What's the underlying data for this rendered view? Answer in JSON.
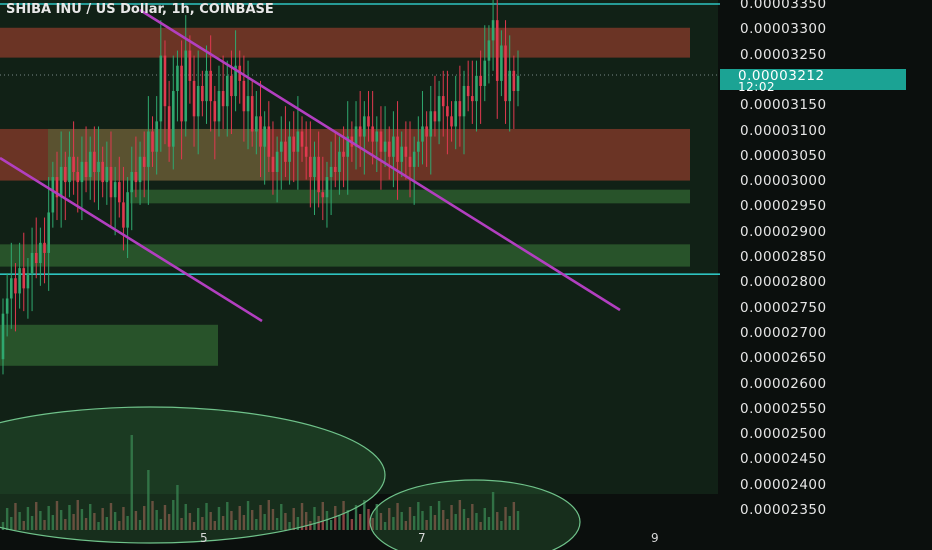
{
  "header": {
    "title": "SHIBA INU / US Dollar, 1h, COINBASE"
  },
  "price_axis": {
    "labels": [
      "0.00003350",
      "0.00003300",
      "0.00003250",
      "0.00003150",
      "0.00003100",
      "0.00003050",
      "0.00003000",
      "0.00002950",
      "0.00002900",
      "0.00002850",
      "0.00002800",
      "0.00002750",
      "0.00002700",
      "0.00002650",
      "0.00002600",
      "0.00002550",
      "0.00002500",
      "0.00002450",
      "0.00002400",
      "0.00002350"
    ],
    "current_price": "0.00003212",
    "countdown": "12:02"
  },
  "time_axis": {
    "labels": [
      "5",
      "7",
      "9"
    ]
  },
  "colors": {
    "background": "#0b0f0d",
    "plot_background": "#112116",
    "up_candle": "#2fa86f",
    "down_candle": "#e0394f",
    "trendline": "#b23fc0",
    "horizontal_line": "#2ec4c0",
    "supply_zone": "#8a3b2b",
    "demand_zone": "#2d5c2e",
    "accent": "#1ba394"
  },
  "chart_data": {
    "type": "candlestick",
    "title": "SHIBA INU / US Dollar, 1h, COINBASE",
    "ylim": [
      2.33e-05,
      3.36e-05
    ],
    "current_price": 3.212e-05,
    "horizontal_lines": [
      3.35e-05,
      2.818e-05
    ],
    "zones": [
      {
        "kind": "supply",
        "low": 3.246e-05,
        "high": 3.305e-05
      },
      {
        "kind": "supply",
        "low": 3.003e-05,
        "high": 3.105e-05
      },
      {
        "kind": "demand",
        "low": 2.958e-05,
        "high": 2.985e-05
      },
      {
        "kind": "demand",
        "low": 2.833e-05,
        "high": 2.877e-05
      },
      {
        "kind": "demand",
        "low": 2.637e-05,
        "high": 2.718e-05
      }
    ],
    "candles": {
      "open": [
        2.65e-05,
        2.74e-05,
        2.77e-05,
        2.81e-05,
        2.78e-05,
        2.83e-05,
        2.79e-05,
        2.82e-05,
        2.86e-05,
        2.84e-05,
        2.88e-05,
        2.86e-05,
        2.94e-05,
        3.01e-05,
        2.97e-05,
        3.03e-05,
        3e-05,
        3.05e-05,
        3.02e-05,
        3e-05,
        3.04e-05,
        3.01e-05,
        3.06e-05,
        3.02e-05,
        3.04e-05,
        3e-05,
        3.03e-05,
        2.97e-05,
        3e-05,
        2.96e-05,
        2.91e-05,
        2.98e-05,
        3.02e-05,
        3e-05,
        3.05e-05,
        3.03e-05,
        3.1e-05,
        3.06e-05,
        3.12e-05,
        3.25e-05,
        3.15e-05,
        3.07e-05,
        3.18e-05,
        3.23e-05,
        3.12e-05,
        3.26e-05,
        3.2e-05,
        3.13e-05,
        3.19e-05,
        3.16e-05,
        3.22e-05,
        3.16e-05,
        3.12e-05,
        3.18e-05,
        3.15e-05,
        3.21e-05,
        3.17e-05,
        3.23e-05,
        3.2e-05,
        3.14e-05,
        3.17e-05,
        3.1e-05,
        3.13e-05,
        3.07e-05,
        3.11e-05,
        3.05e-05,
        3.02e-05,
        3.06e-05,
        3.08e-05,
        3.04e-05,
        3.09e-05,
        3.06e-05,
        3.1e-05,
        3.07e-05,
        3.05e-05,
        3.01e-05,
        3.05e-05,
        2.98e-05,
        2.97e-05,
        3.01e-05,
        3.03e-05,
        3.02e-05,
        3.06e-05,
        3.05e-05,
        3.09e-05,
        3.07e-05,
        3.11e-05,
        3.09e-05,
        3.13e-05,
        3.11e-05,
        3.08e-05,
        3.1e-05,
        3.06e-05,
        3.08e-05,
        3.05e-05,
        3.09e-05,
        3.04e-05,
        3.07e-05,
        3.05e-05,
        3.03e-05,
        3.06e-05,
        3.08e-05,
        3.11e-05,
        3.09e-05,
        3.14e-05,
        3.12e-05,
        3.17e-05,
        3.15e-05,
        3.13e-05,
        3.11e-05,
        3.16e-05,
        3.13e-05,
        3.19e-05,
        3.17e-05,
        3.16e-05,
        3.21e-05,
        3.19e-05,
        3.24e-05,
        3.28e-05,
        3.32e-05,
        3.2e-05,
        3.27e-05,
        3.16e-05,
        3.22e-05,
        3.18e-05
      ],
      "close": [
        2.74e-05,
        2.77e-05,
        2.81e-05,
        2.78e-05,
        2.83e-05,
        2.79e-05,
        2.82e-05,
        2.86e-05,
        2.84e-05,
        2.88e-05,
        2.86e-05,
        2.94e-05,
        3.01e-05,
        2.97e-05,
        3.03e-05,
        3e-05,
        3.05e-05,
        3.02e-05,
        3e-05,
        3.04e-05,
        3.01e-05,
        3.06e-05,
        3.02e-05,
        3.04e-05,
        3e-05,
        3.03e-05,
        2.97e-05,
        3e-05,
        2.96e-05,
        2.91e-05,
        2.98e-05,
        3.02e-05,
        3e-05,
        3.05e-05,
        3.03e-05,
        3.1e-05,
        3.06e-05,
        3.12e-05,
        3.25e-05,
        3.15e-05,
        3.07e-05,
        3.18e-05,
        3.23e-05,
        3.12e-05,
        3.26e-05,
        3.2e-05,
        3.13e-05,
        3.19e-05,
        3.16e-05,
        3.22e-05,
        3.16e-05,
        3.12e-05,
        3.18e-05,
        3.15e-05,
        3.21e-05,
        3.17e-05,
        3.23e-05,
        3.2e-05,
        3.14e-05,
        3.17e-05,
        3.1e-05,
        3.13e-05,
        3.07e-05,
        3.11e-05,
        3.05e-05,
        3.02e-05,
        3.06e-05,
        3.08e-05,
        3.04e-05,
        3.09e-05,
        3.06e-05,
        3.1e-05,
        3.07e-05,
        3.05e-05,
        3.01e-05,
        3.05e-05,
        2.98e-05,
        2.97e-05,
        3.01e-05,
        3.03e-05,
        3.02e-05,
        3.06e-05,
        3.05e-05,
        3.09e-05,
        3.07e-05,
        3.11e-05,
        3.09e-05,
        3.13e-05,
        3.11e-05,
        3.08e-05,
        3.1e-05,
        3.06e-05,
        3.08e-05,
        3.05e-05,
        3.09e-05,
        3.04e-05,
        3.07e-05,
        3.05e-05,
        3.03e-05,
        3.06e-05,
        3.08e-05,
        3.11e-05,
        3.09e-05,
        3.14e-05,
        3.12e-05,
        3.17e-05,
        3.15e-05,
        3.13e-05,
        3.11e-05,
        3.16e-05,
        3.13e-05,
        3.19e-05,
        3.17e-05,
        3.16e-05,
        3.21e-05,
        3.19e-05,
        3.24e-05,
        3.28e-05,
        3.32e-05,
        3.2e-05,
        3.27e-05,
        3.16e-05,
        3.22e-05,
        3.18e-05,
        3.21e-05
      ]
    },
    "volume_panel": {
      "note_values_relative": true
    }
  }
}
